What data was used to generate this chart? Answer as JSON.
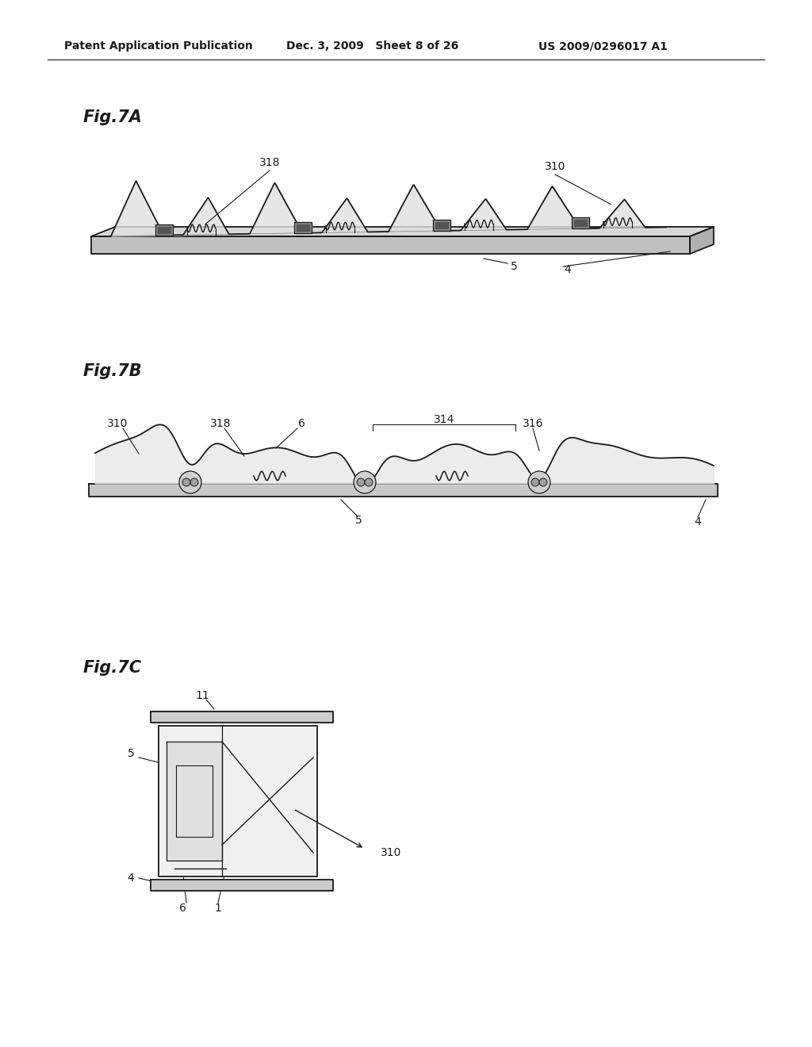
{
  "background_color": "#ffffff",
  "header_left": "Patent Application Publication",
  "header_mid": "Dec. 3, 2009   Sheet 8 of 26",
  "header_right": "US 2009/0296017 A1",
  "fig7A_label": "Fig.7A",
  "fig7B_label": "Fig.7B",
  "fig7C_label": "Fig.7C",
  "line_color": "#1a1a1a",
  "gray_dark": "#aaaaaa",
  "gray_mid": "#cccccc",
  "gray_light": "#e0e0e0"
}
